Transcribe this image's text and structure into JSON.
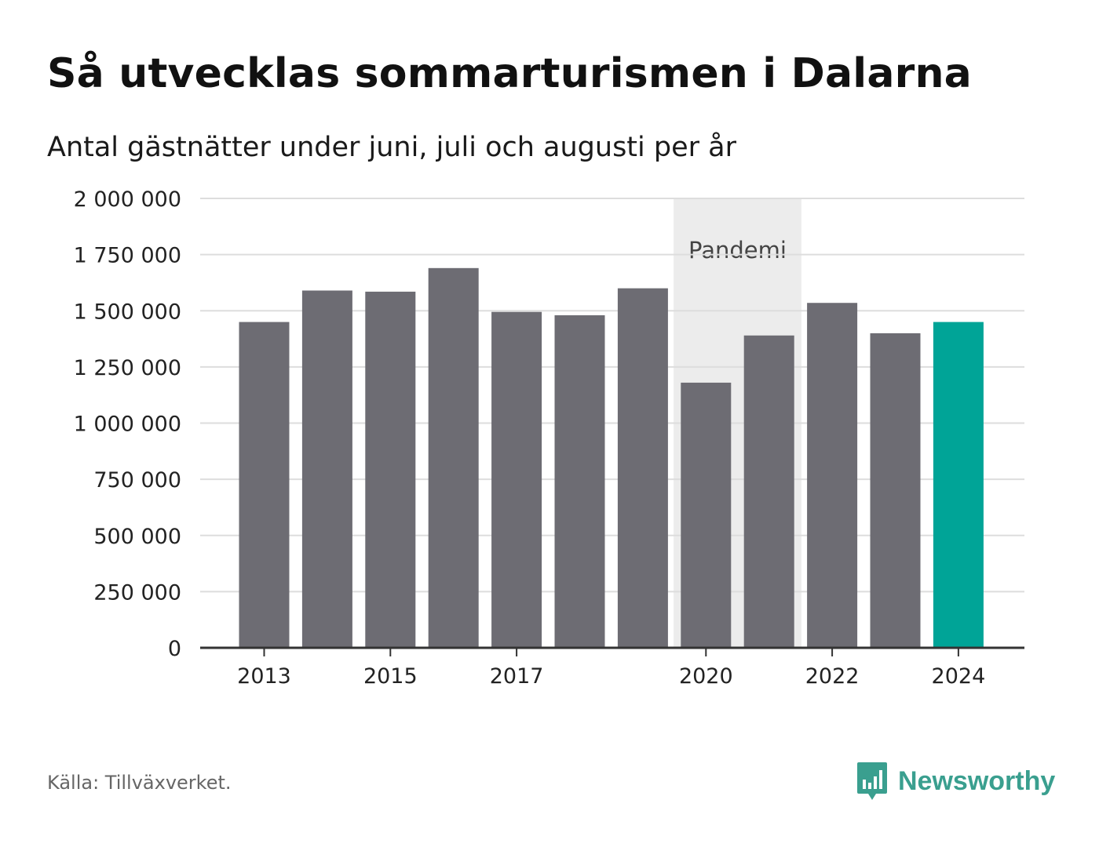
{
  "title": "Så utvecklas sommarturismen i Dalarna",
  "subtitle": "Antal gästnätter under juni, juli och augusti per år",
  "source": "Källa: Tillväxverket.",
  "brand": {
    "name": "Newsworthy",
    "icon": "newsworthy-logo-icon",
    "color": "#3a9f8f"
  },
  "colors": {
    "bar": "#6d6c73",
    "highlight": "#00a497",
    "band": "#ececec",
    "grid": "#dddddd",
    "axis": "#333333"
  },
  "chart_data": {
    "type": "bar",
    "categories": [
      "2013",
      "2014",
      "2015",
      "2016",
      "2017",
      "2018",
      "2019",
      "2020",
      "2021",
      "2022",
      "2023",
      "2024"
    ],
    "values": [
      1450000,
      1590000,
      1585000,
      1690000,
      1495000,
      1480000,
      1600000,
      1180000,
      1390000,
      1535000,
      1400000,
      1450000
    ],
    "highlight": "2024",
    "xtick_labels": [
      "2013",
      "2015",
      "2017",
      "2020",
      "2022",
      "2024"
    ],
    "yticks": [
      0,
      250000,
      500000,
      750000,
      1000000,
      1250000,
      1500000,
      1750000,
      2000000
    ],
    "ytick_labels": [
      "0",
      "250 000",
      "500 000",
      "750 000",
      "1 000 000",
      "1 250 000",
      "1 500 000",
      "1 750 000",
      "2 000 000"
    ],
    "ylim": [
      0,
      2000000
    ],
    "grid": true,
    "annotation": {
      "label": "Pandemi",
      "from": "2020",
      "to": "2021"
    }
  }
}
